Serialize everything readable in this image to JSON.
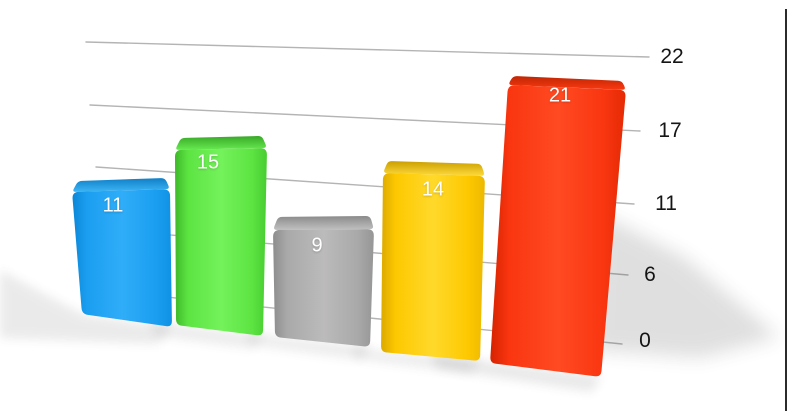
{
  "chart_data": {
    "type": "bar",
    "projection": "3d-perspective",
    "title": "",
    "legend": "none",
    "categories": [],
    "values": [
      11,
      15,
      9,
      14,
      21
    ],
    "bar_labels": [
      "11",
      "15",
      "9",
      "14",
      "21"
    ],
    "bar_colors": [
      "#1b9ef0",
      "#5ce442",
      "#a9a9a9",
      "#fdc800",
      "#f93610"
    ],
    "bar_color_names": [
      "blue",
      "green",
      "gray",
      "yellow",
      "red"
    ],
    "value_label_color": "#ffffff",
    "grid": true,
    "gridline_color": "#b4b4b4",
    "ylim": [
      0,
      22
    ],
    "y_axis": {
      "side": "right",
      "ticks": [
        "22",
        "17",
        "11",
        "6",
        "0"
      ],
      "tick_values": [
        22,
        17,
        11,
        6,
        0
      ],
      "label_color": "#151515"
    }
  }
}
